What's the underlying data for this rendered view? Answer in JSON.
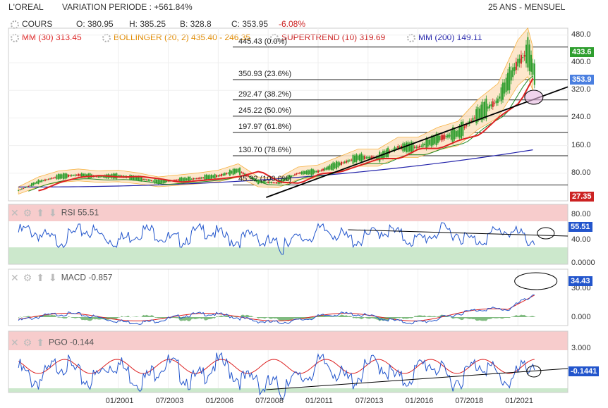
{
  "header": {
    "ticker": "L'OREAL",
    "variation": "VARIATION PERIODE : +561.84%",
    "period": "25 ANS - MENSUEL"
  },
  "ohlc": {
    "label": "COURS",
    "open": "O: 380.95",
    "high": "H: 385.25",
    "low": "B: 328.8",
    "close": "C: 353.95",
    "change": "-6.08%"
  },
  "indicators": {
    "mm30": "MM (30) 313.45",
    "bollinger": "BOLLINGER (20, 2) 435.40 - 246.35",
    "supertrend": "SUPERTREND (10) 319.69",
    "mm200": "MM (200) 149.11"
  },
  "colors": {
    "price_up": "#2e9e2e",
    "price_down": "#cc2222",
    "mm30": "#dd2222",
    "bollinger": "#f5a623",
    "supertrend": "#228822",
    "mm200": "#2222aa",
    "rsi": "#2255cc",
    "overbought": "#f7cccc",
    "oversold": "#cce8cc"
  },
  "panels": {
    "rsi": "RSI 55.51",
    "macd": "MACD -0.857",
    "pgo": "PGO -0.144"
  },
  "chart_data": [
    {
      "type": "line",
      "title": "L'OREAL",
      "x_labels": [
        "01/2001",
        "07/2003",
        "01/2006",
        "07/2008",
        "01/2011",
        "07/2013",
        "01/2016",
        "07/2018",
        "01/2021"
      ],
      "y_ticks": [
        "480.0",
        "400.0",
        "320.0",
        "240.0",
        "160.0",
        "80.00"
      ],
      "ylim": [
        0,
        500
      ],
      "series": [
        {
          "name": "COURS",
          "x": [
            1996,
            1997,
            1998,
            1999,
            2000,
            2001,
            2002,
            2003,
            2004,
            2005,
            2006,
            2007,
            2008,
            2009,
            2010,
            2011,
            2012,
            2013,
            2014,
            2015,
            2016,
            2017,
            2018,
            2019,
            2020,
            2021,
            2021.5,
            2021.9
          ],
          "values": [
            30,
            55,
            70,
            75,
            70,
            72,
            65,
            55,
            60,
            65,
            72,
            88,
            55,
            52,
            80,
            85,
            105,
            125,
            125,
            155,
            155,
            180,
            195,
            250,
            290,
            400,
            430,
            354
          ]
        }
      ],
      "fibonacci": [
        {
          "label": "445.43  (0.0%)",
          "value": 445.43
        },
        {
          "label": "350.93  (23.6%)",
          "value": 350.93
        },
        {
          "label": "292.47  (38.2%)",
          "value": 292.47
        },
        {
          "label": "245.22  (50.0%)",
          "value": 245.22
        },
        {
          "label": "197.97  (61.8%)",
          "value": 197.97
        },
        {
          "label": "130.70  (78.6%)",
          "value": 130.7
        },
        {
          "label": "45.92  (100.0%)",
          "value": 45.92
        }
      ],
      "tags": {
        "high": "433.6",
        "last": "353.9",
        "low": "27.35"
      }
    },
    {
      "type": "line",
      "title": "RSI 55.51",
      "y_ticks": [
        "80.00",
        "40.00",
        "0.0000"
      ],
      "last": "55.51"
    },
    {
      "type": "line",
      "title": "MACD -0.857",
      "y_ticks": [
        "30.00",
        "0.000"
      ],
      "last": "34.43"
    },
    {
      "type": "line",
      "title": "PGO -0.144",
      "y_ticks": [
        "3.000"
      ],
      "last": "-0.1441"
    }
  ]
}
